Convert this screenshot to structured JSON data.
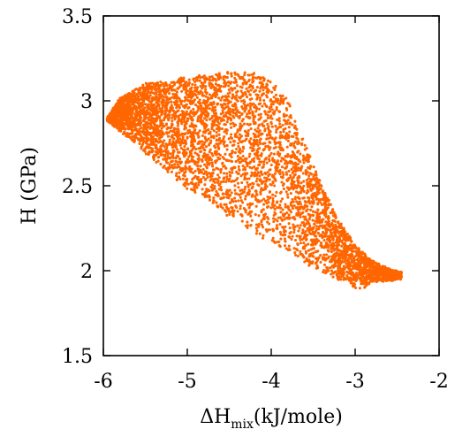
{
  "chart_data": {
    "type": "scatter",
    "title": "",
    "xlabel": {
      "main": "ΔH",
      "subscript": "mix",
      "unit": "(kJ/mole)"
    },
    "ylabel": "H (GPa)",
    "xlim": [
      -6,
      -2
    ],
    "ylim": [
      1.5,
      3.5
    ],
    "xticks": [
      -6,
      -5,
      -4,
      -3,
      -2
    ],
    "yticks": [
      1.5,
      2,
      2.5,
      3,
      3.5
    ],
    "xtick_labels": [
      "-6",
      "-5",
      "-4",
      "-3",
      "-2"
    ],
    "ytick_labels": [
      "1.5",
      "2",
      "2.5",
      "3",
      "3.5"
    ],
    "grid": false,
    "marker_color": "#ff6600",
    "point_cloud": {
      "description_points": "dense band of points spanning the region bounded by the outline below",
      "upper_edge": [
        [
          -5.95,
          2.9
        ],
        [
          -5.8,
          3.02
        ],
        [
          -5.5,
          3.1
        ],
        [
          -5.0,
          3.14
        ],
        [
          -4.5,
          3.17
        ],
        [
          -4.2,
          3.16
        ],
        [
          -4.0,
          3.12
        ],
        [
          -3.8,
          3.0
        ],
        [
          -3.6,
          2.75
        ],
        [
          -3.4,
          2.5
        ],
        [
          -3.2,
          2.3
        ],
        [
          -3.0,
          2.15
        ],
        [
          -2.8,
          2.06
        ],
        [
          -2.6,
          2.01
        ],
        [
          -2.45,
          1.99
        ]
      ],
      "lower_edge": [
        [
          -5.95,
          2.88
        ],
        [
          -5.7,
          2.78
        ],
        [
          -5.4,
          2.65
        ],
        [
          -5.0,
          2.48
        ],
        [
          -4.6,
          2.35
        ],
        [
          -4.2,
          2.22
        ],
        [
          -3.9,
          2.12
        ],
        [
          -3.6,
          2.04
        ],
        [
          -3.3,
          1.97
        ],
        [
          -3.1,
          1.93
        ],
        [
          -2.95,
          1.88
        ],
        [
          -2.8,
          1.93
        ],
        [
          -2.6,
          1.94
        ],
        [
          -2.45,
          1.95
        ]
      ]
    }
  }
}
